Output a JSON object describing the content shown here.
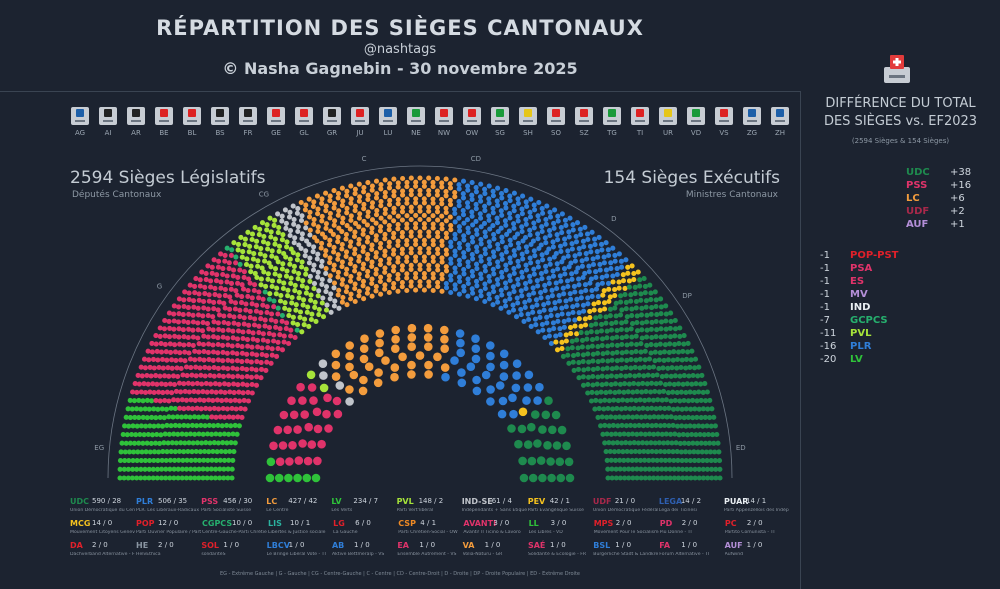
{
  "header": {
    "title": "RÉPARTITION DES SIÈGES CANTONAUX",
    "handle": "@nashtags",
    "credit": "© Nasha Gagnebin - 30 novembre 2025"
  },
  "cantons": [
    "AG",
    "AI",
    "AR",
    "BE",
    "BL",
    "BS",
    "FR",
    "GE",
    "GL",
    "GR",
    "JU",
    "LU",
    "NE",
    "NW",
    "OW",
    "SG",
    "SH",
    "SO",
    "SZ",
    "TG",
    "TI",
    "UR",
    "VD",
    "VS",
    "ZG",
    "ZH"
  ],
  "canton_colors": [
    "#1d5fa8",
    "#222",
    "#222",
    "#d22",
    "#d22",
    "#222",
    "#222",
    "#d22",
    "#d22",
    "#222",
    "#d22",
    "#1d5fa8",
    "#1a9a3a",
    "#d22",
    "#d22",
    "#1a9a3a",
    "#e6c619",
    "#d22",
    "#d22",
    "#1a9a3a",
    "#d22",
    "#e6c619",
    "#1a9a3a",
    "#d22",
    "#1d5fa8",
    "#1d5fa8"
  ],
  "legislative": {
    "heading": "2594 Sièges Législatifs",
    "sub": "Députés Cantonaux"
  },
  "executive": {
    "heading": "154 Sièges Exécutifs",
    "sub": "Ministres Cantonaux"
  },
  "arc_labels": [
    "EG",
    "G",
    "CG",
    "C",
    "CD",
    "D",
    "DP",
    "ED"
  ],
  "chart_data": {
    "type": "parliament",
    "title": "RÉPARTITION DES SIÈGES CANTONAUX",
    "total_legislative": 2594,
    "total_executive": 154,
    "parties": [
      {
        "abbr": "UDC",
        "legislative": 590,
        "executive": 28,
        "name": "Union Démocratique du Centre",
        "color": "#1e8a4e"
      },
      {
        "abbr": "PLR",
        "legislative": 506,
        "executive": 35,
        "name": "PLR. Les Libéraux-Radicaux",
        "color": "#2f7ed8"
      },
      {
        "abbr": "PSS",
        "legislative": 456,
        "executive": 30,
        "name": "Parti Socialiste Suisse",
        "color": "#e0336a"
      },
      {
        "abbr": "LC",
        "legislative": 427,
        "executive": 42,
        "name": "Le Centre",
        "color": "#f39c3d"
      },
      {
        "abbr": "LV",
        "legislative": 234,
        "executive": 7,
        "name": "Les Verts",
        "color": "#2fc23a"
      },
      {
        "abbr": "PVL",
        "legislative": 148,
        "executive": 2,
        "name": "Parti Vert'libéral",
        "color": "#a6e33a"
      },
      {
        "abbr": "IND-SE",
        "legislative": 61,
        "executive": 4,
        "name": "Indépendants + Sans Étiquette",
        "color": "#c0c4ca"
      },
      {
        "abbr": "PEV",
        "legislative": 42,
        "executive": 1,
        "name": "Parti Évangélique Suisse",
        "color": "#f5c21f"
      },
      {
        "abbr": "UDF",
        "legislative": 21,
        "executive": 0,
        "name": "Union Démocratique Fédérale",
        "color": "#a8284a"
      },
      {
        "abbr": "LEGA",
        "legislative": 14,
        "executive": 2,
        "name": "Lega dei Ticinesi",
        "color": "#2e5fb0"
      },
      {
        "abbr": "PUAR",
        "legislative": 14,
        "executive": 1,
        "name": "Parti Appenzellois des Indépendants",
        "color": "#e9eef2"
      },
      {
        "abbr": "MCG",
        "legislative": 14,
        "executive": 0,
        "name": "Mouvement Citoyens Genevois - GE",
        "color": "#f5c21f"
      },
      {
        "abbr": "POP",
        "legislative": 12,
        "executive": 0,
        "name": "Parti Ouvrier Populaire / Parti Suisse du Travail",
        "color": "#e0202a"
      },
      {
        "abbr": "CGPCS",
        "legislative": 10,
        "executive": 0,
        "name": "Centre-Gauche-Parti Chrétien-Social",
        "color": "#26b06e"
      },
      {
        "abbr": "LIS",
        "legislative": 10,
        "executive": 1,
        "name": "Libertés & Justice sociale",
        "color": "#2bb3a0"
      },
      {
        "abbr": "LG",
        "legislative": 6,
        "executive": 0,
        "name": "La Gauche",
        "color": "#e0202a"
      },
      {
        "abbr": "CSP",
        "legislative": 4,
        "executive": 1,
        "name": "Parti Chrétien-Social - OW",
        "color": "#f08a24"
      },
      {
        "abbr": "AVANTI",
        "legislative": 3,
        "executive": 0,
        "name": "Avanti! Il Ticino & Lavoro",
        "color": "#e0336a"
      },
      {
        "abbr": "LL",
        "legislative": 3,
        "executive": 0,
        "name": "Les Libres - VD",
        "color": "#2fc23a"
      },
      {
        "abbr": "MPS",
        "legislative": 2,
        "executive": 0,
        "name": "Movement Pour le Socialisme - TI",
        "color": "#e0202a"
      },
      {
        "abbr": "PD",
        "legislative": 2,
        "executive": 0,
        "name": "Più Donne - TI",
        "color": "#e0336a"
      },
      {
        "abbr": "PC",
        "legislative": 2,
        "executive": 0,
        "name": "Partito Comunista - TI",
        "color": "#e0202a"
      },
      {
        "abbr": "DA",
        "legislative": 2,
        "executive": 0,
        "name": "Dachverband Alternative - FR",
        "color": "#e0202a"
      },
      {
        "abbr": "HE",
        "legislative": 2,
        "executive": 0,
        "name": "HelvEthica",
        "color": "#8a96a2"
      },
      {
        "abbr": "SOL",
        "legislative": 1,
        "executive": 0,
        "name": "solidaritéS",
        "color": "#e0202a"
      },
      {
        "abbr": "LBCV",
        "legislative": 1,
        "executive": 0,
        "name": "Le Bringe Libéral Vote - TI",
        "color": "#2f7ed8"
      },
      {
        "abbr": "AB",
        "legislative": 1,
        "executive": 0,
        "name": "Aktive Bettmeralp - VS",
        "color": "#2f7ed8"
      },
      {
        "abbr": "EA",
        "legislative": 1,
        "executive": 0,
        "name": "Ensemble Autrement - VS",
        "color": "#e0336a"
      },
      {
        "abbr": "VA",
        "legislative": 1,
        "executive": 0,
        "name": "Volia-Naturu - GR",
        "color": "#f39c3d"
      },
      {
        "abbr": "SAÉ",
        "legislative": 1,
        "executive": 0,
        "name": "Solidarité & Écologie - FR",
        "color": "#e0336a"
      },
      {
        "abbr": "BSL",
        "legislative": 1,
        "executive": 0,
        "name": "Bürgerliche Stadt & Landkreis - BS",
        "color": "#2f7ed8"
      },
      {
        "abbr": "FA",
        "legislative": 1,
        "executive": 0,
        "name": "Forum Alternative - TI",
        "color": "#e0336a"
      },
      {
        "abbr": "AUF",
        "legislative": 1,
        "executive": 0,
        "name": "Aufwind",
        "color": "#b48fd8"
      }
    ],
    "legislative_arc": [
      {
        "abbr": "LV",
        "color": "#2fc23a",
        "seats": 234
      },
      {
        "abbr": "PSS",
        "color": "#e0336a",
        "seats": 456
      },
      {
        "abbr": "CGPCS",
        "color": "#26b06e",
        "seats": 10
      },
      {
        "abbr": "PVL",
        "color": "#a6e33a",
        "seats": 148
      },
      {
        "abbr": "IND-SE",
        "color": "#c0c4ca",
        "seats": 61
      },
      {
        "abbr": "LC",
        "color": "#f39c3d",
        "seats": 427
      },
      {
        "abbr": "PLR",
        "color": "#2f7ed8",
        "seats": 506
      },
      {
        "abbr": "PEV",
        "color": "#f5c21f",
        "seats": 42
      },
      {
        "abbr": "UDC",
        "color": "#1e8a4e",
        "seats": 590
      }
    ],
    "executive_arc": [
      {
        "abbr": "LV",
        "color": "#2fc23a",
        "seats": 7
      },
      {
        "abbr": "PSS",
        "color": "#e0336a",
        "seats": 30
      },
      {
        "abbr": "PVL",
        "color": "#a6e33a",
        "seats": 2
      },
      {
        "abbr": "IND-SE",
        "color": "#c0c4ca",
        "seats": 4
      },
      {
        "abbr": "LC",
        "color": "#f39c3d",
        "seats": 42
      },
      {
        "abbr": "PLR",
        "color": "#2f7ed8",
        "seats": 35
      },
      {
        "abbr": "PEV",
        "color": "#f5c21f",
        "seats": 1
      },
      {
        "abbr": "UDC",
        "color": "#1e8a4e",
        "seats": 28
      }
    ]
  },
  "footer": "EG - Extrême Gauche | G - Gauche | CG - Centre-Gauche | C - Centre | CD - Centre-Droit | D - Droite | DP - Droite Populaire | ED - Extrême Droite",
  "side": {
    "title_line1": "DIFFÉRENCE DU TOTAL",
    "title_line2": "DES SIÈGES vs. EF2023",
    "sub": "(2594 Sièges & 154 Sièges)",
    "gains": [
      {
        "abbr": "UDC",
        "val": "+38",
        "color": "#1e8a4e"
      },
      {
        "abbr": "PSS",
        "val": "+16",
        "color": "#e0336a"
      },
      {
        "abbr": "LC",
        "val": "+6",
        "color": "#f39c3d"
      },
      {
        "abbr": "UDF",
        "val": "+2",
        "color": "#a8284a"
      },
      {
        "abbr": "AUF",
        "val": "+1",
        "color": "#b48fd8"
      }
    ],
    "losses": [
      {
        "abbr": "POP-PST",
        "val": "-1",
        "color": "#e0202a"
      },
      {
        "abbr": "PSA",
        "val": "-1",
        "color": "#e0336a"
      },
      {
        "abbr": "ES",
        "val": "-1",
        "color": "#e0336a"
      },
      {
        "abbr": "MV",
        "val": "-1",
        "color": "#b48fd8"
      },
      {
        "abbr": "IND",
        "val": "-1",
        "color": "#e9eef2"
      },
      {
        "abbr": "GCPCS",
        "val": "-7",
        "color": "#26b06e"
      },
      {
        "abbr": "PVL",
        "val": "-11",
        "color": "#a6e33a"
      },
      {
        "abbr": "PLR",
        "val": "-16",
        "color": "#2f7ed8"
      },
      {
        "abbr": "LV",
        "val": "-20",
        "color": "#2fc23a"
      }
    ]
  }
}
